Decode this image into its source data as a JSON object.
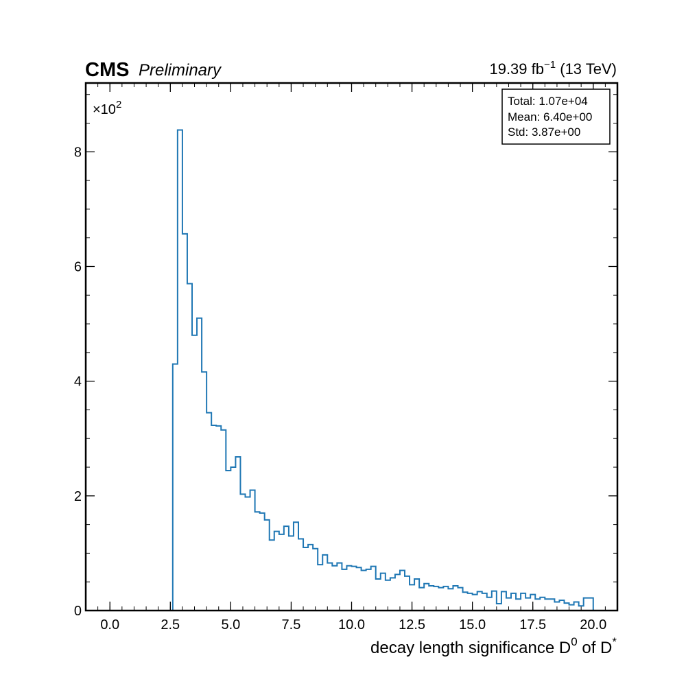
{
  "chart_data": {
    "type": "histogram",
    "experiment": "CMS",
    "status": "Preliminary",
    "lumi": {
      "value": "19.39",
      "unit": "fb",
      "unit_sup": "−1",
      "energy": "(13 TeV)"
    },
    "xlabel": {
      "main": "decay length significance D",
      "sup1": "0",
      "mid": " of D",
      "sup2": "*"
    },
    "ylabel": "",
    "y_multiplier": {
      "base": "×10",
      "exp": "2"
    },
    "xlim": [
      -1.0,
      21.0
    ],
    "ylim": [
      0,
      920
    ],
    "x_ticks": [
      "0.0",
      "2.5",
      "5.0",
      "7.5",
      "10.0",
      "12.5",
      "15.0",
      "17.5",
      "20.0"
    ],
    "y_ticks": [
      "0",
      "2",
      "4",
      "6",
      "8"
    ],
    "y_tick_values": [
      0,
      200,
      400,
      600,
      800
    ],
    "bin_width": 0.2,
    "bin_start": 2.6,
    "values": [
      430,
      838,
      657,
      570,
      480,
      510,
      416,
      345,
      323,
      322,
      315,
      244,
      250,
      268,
      203,
      198,
      210,
      172,
      170,
      158,
      123,
      138,
      133,
      147,
      130,
      154,
      125,
      110,
      115,
      108,
      80,
      97,
      83,
      78,
      83,
      72,
      78,
      77,
      75,
      70,
      72,
      77,
      55,
      65,
      53,
      57,
      63,
      70,
      60,
      45,
      55,
      40,
      47,
      43,
      42,
      40,
      42,
      38,
      43,
      40,
      32,
      30,
      28,
      33,
      30,
      23,
      34,
      12,
      33,
      22,
      30,
      20,
      30,
      22,
      28,
      20,
      23,
      20,
      20,
      15,
      18,
      13,
      10,
      15,
      8,
      22,
      22
    ],
    "color": "#1f77b4",
    "stats_box": [
      "Total: 1.07e+04",
      "Mean: 6.40e+00",
      "Std: 3.87e+00"
    ]
  }
}
